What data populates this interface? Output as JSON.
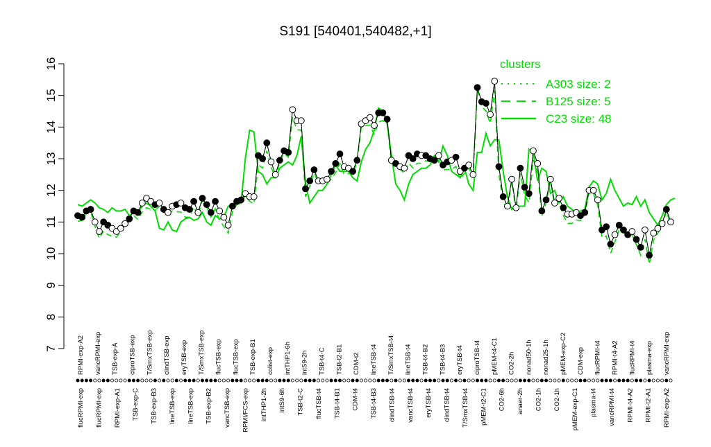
{
  "chart_data": {
    "type": "line",
    "title": "S191 [540401,540482,+1]",
    "xlabel": "",
    "ylabel": "",
    "ylim": [
      7,
      16
    ],
    "yticks": [
      7,
      8,
      9,
      10,
      11,
      12,
      13,
      14,
      15,
      16
    ],
    "grid": false,
    "legend_title": "clusters",
    "legend_position": "top-right",
    "series": [
      {
        "name": "A303 size: 2",
        "style": "dotted",
        "color": "#00dd00"
      },
      {
        "name": "B125 size: 5",
        "style": "dashed",
        "color": "#00dd00"
      },
      {
        "name": "C23 size: 48",
        "style": "solid",
        "color": "#00dd00"
      }
    ],
    "top_tick_labels": [
      "RPMI-exp-A2",
      "vancRPMI-exp",
      "TSB-exp-A",
      "ciproTSB-exp",
      "T/SmxTSB-exp",
      "clindTSB-exp",
      "eryTSB-exp",
      "T/SmxTSB-exp",
      "flucTSB-exp",
      "flucTSB-exp",
      "TSB-exp-B1",
      "colist-exp",
      "intTHP1-6h",
      "intS9-2h",
      "TSB-t4-C",
      "TSB-t2-B1",
      "CDM-t2",
      "lineTSB-t4",
      "T/SmxTSB-t4",
      "lineTSB-t4",
      "TSB-t4-B2",
      "TSB-t4-B3",
      "eryTSB-t4",
      "ciproTSB-t4",
      "pMEM-t4-C1",
      "CO2-2h",
      "nonad50-1h",
      "nonad25-1h",
      "pMEM-exp-C2",
      "CDM-exp",
      "flucRPMI-t4",
      "RPMI-t4-A2",
      "flucRPMI-t4",
      "plasma-exp",
      "vancRPMI-exp"
    ],
    "bottom_tick_labels": [
      "flucRPMI-exp",
      "flucRPMI-exp",
      "RPMI-exp-A1",
      "TSB-exp-C",
      "TSB-exp-B3",
      "lineTSB-exp",
      "lineTSB-exp",
      "TSB-exp-B2",
      "vancTSB-exp",
      "RPMI/FCS-exp",
      "intTHP1-2h",
      "intS9-6h",
      "TSB-t2-C",
      "flucTSB-t4",
      "TSB-t4-B1",
      "CDM-t4",
      "TSB-t4-B3",
      "clindTSB-t4",
      "vancTSB-t4",
      "eryTSB-t4",
      "clindTSB-t4",
      "T/SmxTSB-t4",
      "pMEM-t2-C1",
      "CO2-6h",
      "anaer-2h",
      "CO2-1h",
      "CO2-1h",
      "pMEM-exp-C1",
      "plasma-t4",
      "vancRPMI-t4",
      "RPMI-t4-A2",
      "RPMI-t2-A1",
      "RPMI-exp-A2"
    ],
    "points": [
      {
        "i": 0,
        "y": 11.2,
        "f": true
      },
      {
        "i": 1,
        "y": 11.15,
        "f": true
      },
      {
        "i": 2,
        "y": 11.35,
        "f": true
      },
      {
        "i": 3,
        "y": 11.4,
        "f": true
      },
      {
        "i": 4,
        "y": 11.0,
        "f": false
      },
      {
        "i": 5,
        "y": 10.7,
        "f": false
      },
      {
        "i": 6,
        "y": 11.0,
        "f": true
      },
      {
        "i": 7,
        "y": 10.9,
        "f": true
      },
      {
        "i": 8,
        "y": 10.8,
        "f": false
      },
      {
        "i": 9,
        "y": 10.7,
        "f": false
      },
      {
        "i": 10,
        "y": 10.8,
        "f": false
      },
      {
        "i": 11,
        "y": 10.95,
        "f": false
      },
      {
        "i": 12,
        "y": 11.1,
        "f": true
      },
      {
        "i": 13,
        "y": 11.35,
        "f": true
      },
      {
        "i": 14,
        "y": 11.3,
        "f": true
      },
      {
        "i": 15,
        "y": 11.6,
        "f": false
      },
      {
        "i": 16,
        "y": 11.75,
        "f": false
      },
      {
        "i": 17,
        "y": 11.65,
        "f": false
      },
      {
        "i": 18,
        "y": 11.55,
        "f": true
      },
      {
        "i": 19,
        "y": 11.6,
        "f": false
      },
      {
        "i": 20,
        "y": 11.4,
        "f": true
      },
      {
        "i": 21,
        "y": 11.3,
        "f": false
      },
      {
        "i": 22,
        "y": 11.5,
        "f": false
      },
      {
        "i": 23,
        "y": 11.55,
        "f": true
      },
      {
        "i": 24,
        "y": 11.6,
        "f": false
      },
      {
        "i": 25,
        "y": 11.45,
        "f": true
      },
      {
        "i": 26,
        "y": 11.4,
        "f": true
      },
      {
        "i": 27,
        "y": 11.65,
        "f": true
      },
      {
        "i": 28,
        "y": 11.3,
        "f": false
      },
      {
        "i": 29,
        "y": 11.75,
        "f": true
      },
      {
        "i": 30,
        "y": 11.55,
        "f": true
      },
      {
        "i": 31,
        "y": 11.3,
        "f": true
      },
      {
        "i": 32,
        "y": 11.65,
        "f": true
      },
      {
        "i": 33,
        "y": 11.35,
        "f": false
      },
      {
        "i": 34,
        "y": 11.15,
        "f": false
      },
      {
        "i": 35,
        "y": 10.9,
        "f": false
      },
      {
        "i": 36,
        "y": 11.5,
        "f": true
      },
      {
        "i": 37,
        "y": 11.65,
        "f": true
      },
      {
        "i": 38,
        "y": 11.7,
        "f": true
      },
      {
        "i": 39,
        "y": 11.9,
        "f": false
      },
      {
        "i": 40,
        "y": 11.8,
        "f": false
      },
      {
        "i": 41,
        "y": 11.8,
        "f": false
      },
      {
        "i": 42,
        "y": 13.1,
        "f": true
      },
      {
        "i": 43,
        "y": 13.0,
        "f": true
      },
      {
        "i": 44,
        "y": 13.5,
        "f": true
      },
      {
        "i": 45,
        "y": 12.9,
        "f": false
      },
      {
        "i": 46,
        "y": 12.5,
        "f": false
      },
      {
        "i": 47,
        "y": 12.95,
        "f": true
      },
      {
        "i": 48,
        "y": 13.25,
        "f": true
      },
      {
        "i": 49,
        "y": 13.2,
        "f": true
      },
      {
        "i": 50,
        "y": 14.55,
        "f": false
      },
      {
        "i": 51,
        "y": 14.2,
        "f": false
      },
      {
        "i": 52,
        "y": 14.2,
        "f": false
      },
      {
        "i": 53,
        "y": 12.05,
        "f": true
      },
      {
        "i": 54,
        "y": 12.3,
        "f": true
      },
      {
        "i": 55,
        "y": 12.65,
        "f": true
      },
      {
        "i": 56,
        "y": 12.3,
        "f": false
      },
      {
        "i": 57,
        "y": 12.3,
        "f": false
      },
      {
        "i": 58,
        "y": 12.35,
        "f": false
      },
      {
        "i": 59,
        "y": 12.6,
        "f": true
      },
      {
        "i": 60,
        "y": 12.85,
        "f": true
      },
      {
        "i": 61,
        "y": 13.15,
        "f": true
      },
      {
        "i": 62,
        "y": 12.75,
        "f": false
      },
      {
        "i": 63,
        "y": 12.7,
        "f": false
      },
      {
        "i": 64,
        "y": 12.6,
        "f": true
      },
      {
        "i": 65,
        "y": 12.95,
        "f": true
      },
      {
        "i": 66,
        "y": 14.1,
        "f": false
      },
      {
        "i": 67,
        "y": 14.2,
        "f": false
      },
      {
        "i": 68,
        "y": 14.3,
        "f": false
      },
      {
        "i": 69,
        "y": 14.05,
        "f": false
      },
      {
        "i": 70,
        "y": 14.45,
        "f": true
      },
      {
        "i": 71,
        "y": 14.45,
        "f": true
      },
      {
        "i": 72,
        "y": 14.25,
        "f": true
      },
      {
        "i": 73,
        "y": 12.95,
        "f": false
      },
      {
        "i": 74,
        "y": 12.85,
        "f": true
      },
      {
        "i": 75,
        "y": 12.75,
        "f": false
      },
      {
        "i": 76,
        "y": 12.7,
        "f": false
      },
      {
        "i": 77,
        "y": 13.1,
        "f": true
      },
      {
        "i": 78,
        "y": 13.0,
        "f": true
      },
      {
        "i": 79,
        "y": 13.15,
        "f": true
      },
      {
        "i": 80,
        "y": 13.1,
        "f": false
      },
      {
        "i": 81,
        "y": 13.1,
        "f": true
      },
      {
        "i": 82,
        "y": 13.0,
        "f": true
      },
      {
        "i": 83,
        "y": 12.95,
        "f": true
      },
      {
        "i": 84,
        "y": 13.1,
        "f": false
      },
      {
        "i": 85,
        "y": 12.8,
        "f": true
      },
      {
        "i": 86,
        "y": 12.9,
        "f": true
      },
      {
        "i": 87,
        "y": 12.95,
        "f": false
      },
      {
        "i": 88,
        "y": 13.05,
        "f": true
      },
      {
        "i": 89,
        "y": 12.6,
        "f": false
      },
      {
        "i": 90,
        "y": 12.7,
        "f": true
      },
      {
        "i": 91,
        "y": 12.8,
        "f": false
      },
      {
        "i": 92,
        "y": 12.5,
        "f": false
      },
      {
        "i": 93,
        "y": 15.25,
        "f": true
      },
      {
        "i": 94,
        "y": 14.8,
        "f": true
      },
      {
        "i": 95,
        "y": 14.75,
        "f": true
      },
      {
        "i": 96,
        "y": 14.4,
        "f": false
      },
      {
        "i": 97,
        "y": 15.45,
        "f": false
      },
      {
        "i": 98,
        "y": 12.75,
        "f": true
      },
      {
        "i": 99,
        "y": 11.8,
        "f": true
      },
      {
        "i": 100,
        "y": 11.5,
        "f": false
      },
      {
        "i": 101,
        "y": 12.35,
        "f": false
      },
      {
        "i": 102,
        "y": 11.45,
        "f": false
      },
      {
        "i": 103,
        "y": 12.7,
        "f": true
      },
      {
        "i": 104,
        "y": 12.1,
        "f": true
      },
      {
        "i": 105,
        "y": 11.9,
        "f": true
      },
      {
        "i": 106,
        "y": 13.25,
        "f": false
      },
      {
        "i": 107,
        "y": 12.85,
        "f": false
      },
      {
        "i": 108,
        "y": 11.35,
        "f": true
      },
      {
        "i": 109,
        "y": 11.7,
        "f": true
      },
      {
        "i": 110,
        "y": 12.35,
        "f": false
      },
      {
        "i": 111,
        "y": 11.6,
        "f": false
      },
      {
        "i": 112,
        "y": 11.75,
        "f": false
      },
      {
        "i": 113,
        "y": 11.45,
        "f": true
      },
      {
        "i": 114,
        "y": 11.25,
        "f": false
      },
      {
        "i": 115,
        "y": 11.25,
        "f": false
      },
      {
        "i": 116,
        "y": 11.3,
        "f": false
      },
      {
        "i": 117,
        "y": 11.2,
        "f": true
      },
      {
        "i": 118,
        "y": 11.3,
        "f": true
      },
      {
        "i": 119,
        "y": 12.0,
        "f": false
      },
      {
        "i": 120,
        "y": 12.0,
        "f": false
      },
      {
        "i": 121,
        "y": 11.7,
        "f": false
      },
      {
        "i": 122,
        "y": 10.75,
        "f": true
      },
      {
        "i": 123,
        "y": 10.85,
        "f": true
      },
      {
        "i": 124,
        "y": 10.3,
        "f": true
      },
      {
        "i": 125,
        "y": 10.6,
        "f": false
      },
      {
        "i": 126,
        "y": 10.9,
        "f": true
      },
      {
        "i": 127,
        "y": 10.75,
        "f": true
      },
      {
        "i": 128,
        "y": 10.6,
        "f": true
      },
      {
        "i": 129,
        "y": 10.7,
        "f": false
      },
      {
        "i": 130,
        "y": 10.45,
        "f": true
      },
      {
        "i": 131,
        "y": 10.2,
        "f": true
      },
      {
        "i": 132,
        "y": 10.75,
        "f": false
      },
      {
        "i": 133,
        "y": 9.95,
        "f": true
      },
      {
        "i": 134,
        "y": 10.65,
        "f": false
      },
      {
        "i": 135,
        "y": 10.8,
        "f": false
      },
      {
        "i": 136,
        "y": 10.95,
        "f": false
      },
      {
        "i": 137,
        "y": 11.4,
        "f": true
      },
      {
        "i": 138,
        "y": 11.0,
        "f": false
      }
    ],
    "c23_line": [
      11.55,
      11.5,
      11.6,
      11.7,
      11.6,
      11.45,
      11.4,
      11.3,
      11.45,
      11.35,
      11.35,
      11.4,
      11.2,
      11.3,
      11.3,
      11.5,
      11.6,
      11.5,
      11.35,
      10.8,
      10.75,
      11.0,
      10.75,
      10.7,
      11.0,
      11.1,
      11.15,
      11.05,
      11.1,
      11.3,
      11.0,
      10.9,
      11.2,
      11.1,
      11.15,
      11.5,
      11.5,
      11.55,
      11.6,
      13.0,
      13.9,
      13.85,
      12.6,
      12.5,
      12.2,
      12.4,
      12.4,
      12.7,
      12.8,
      12.9,
      12.8,
      13.1,
      13.7,
      12.2,
      11.6,
      11.8,
      12.0,
      12.0,
      12.2,
      12.5,
      12.8,
      12.6,
      12.6,
      12.6,
      12.4,
      12.3,
      12.9,
      13.3,
      13.5,
      13.9,
      14.6,
      14.5,
      14.1,
      13.1,
      12.2,
      12.0,
      11.7,
      12.2,
      12.5,
      12.6,
      12.7,
      12.7,
      12.8,
      13.1,
      12.9,
      13.4,
      13.1,
      12.6,
      12.5,
      12.4,
      12.7,
      12.2,
      12.0,
      13.2,
      13.2,
      13.8,
      13.4,
      13.6,
      13.6,
      12.6,
      11.8,
      11.4,
      11.5,
      11.5,
      11.5,
      13.3,
      13.2,
      12.3,
      12.7,
      12.6,
      11.9,
      12.0,
      11.6,
      11.8,
      11.5,
      11.4,
      11.3,
      11.35,
      11.4,
      12.1,
      12.3,
      12.2,
      11.7,
      11.9,
      12.35,
      12.0,
      11.75,
      11.5,
      11.6,
      11.55,
      11.8,
      11.5,
      11.7,
      11.3,
      11.1,
      10.9,
      11.2,
      11.55,
      11.7,
      11.75
    ]
  }
}
